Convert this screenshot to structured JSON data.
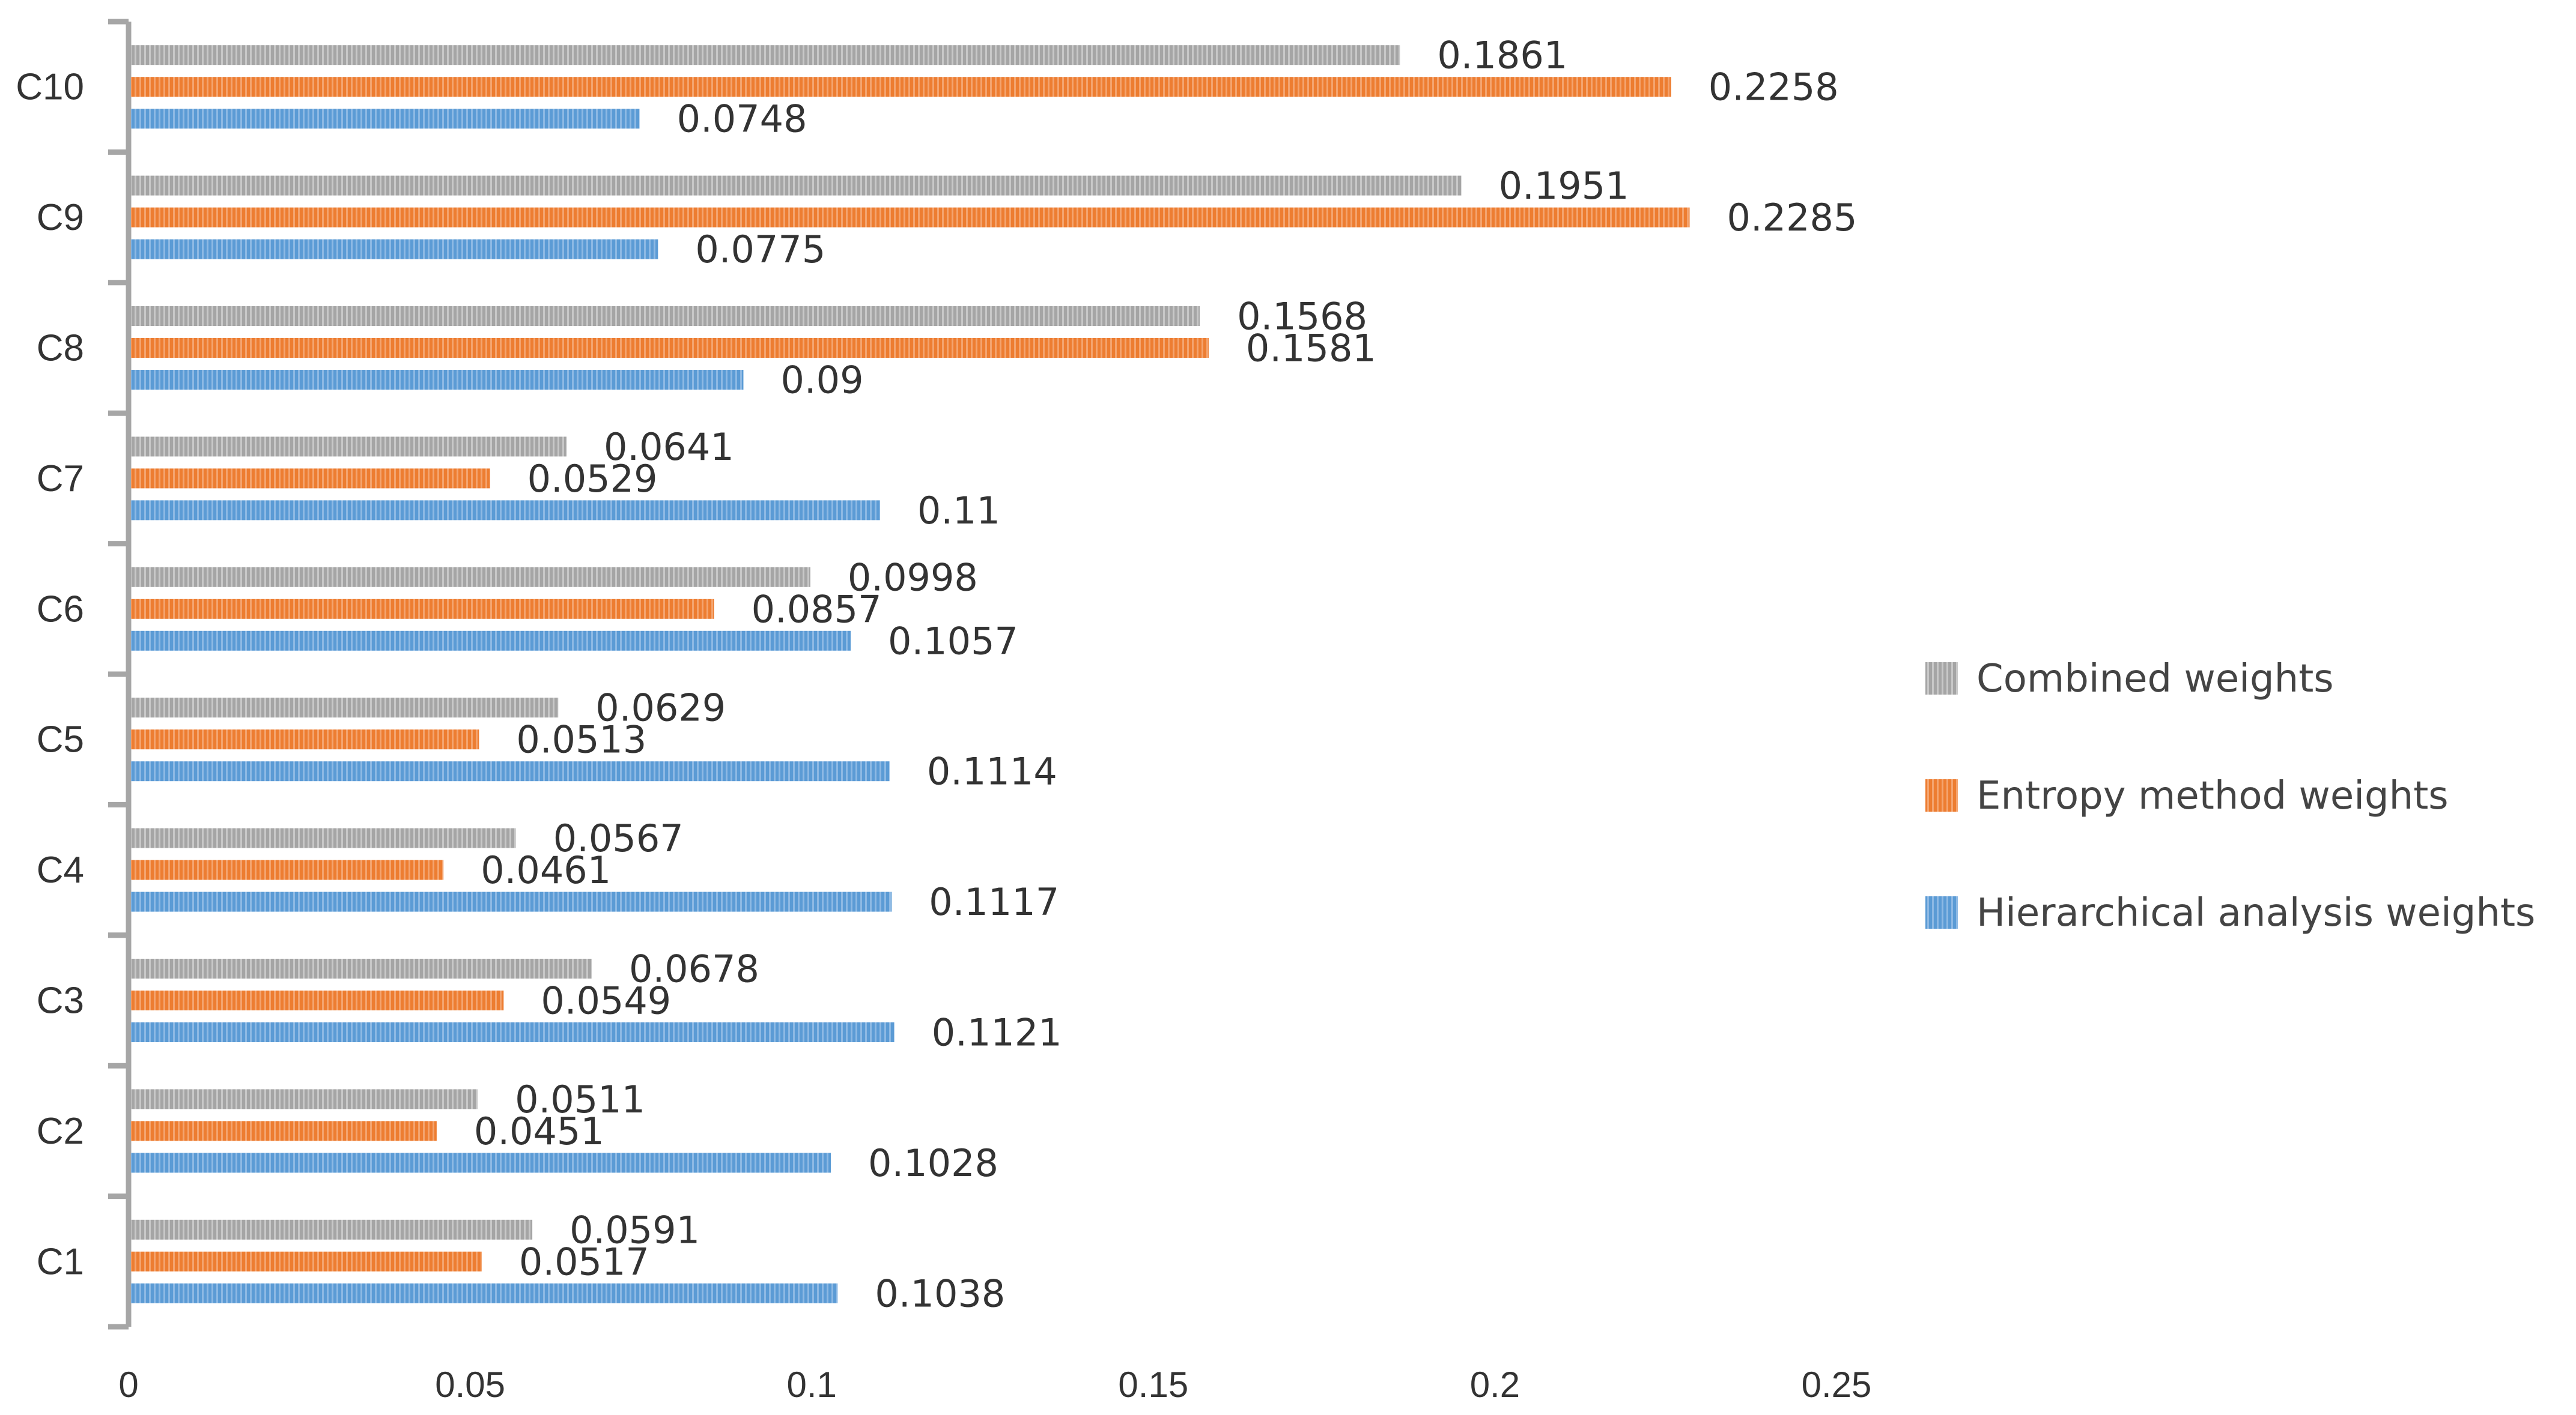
{
  "chart_data": {
    "type": "bar",
    "orientation": "horizontal",
    "title": "",
    "xlabel": "",
    "ylabel": "",
    "xlim": [
      0,
      0.25
    ],
    "x_ticks": [
      "0",
      "0.05",
      "0.1",
      "0.15",
      "0.2",
      "0.25"
    ],
    "x_tick_values": [
      0,
      0.05,
      0.1,
      0.15,
      0.2,
      0.25
    ],
    "grid": false,
    "legend_position": "right",
    "categories": [
      "C1",
      "C2",
      "C3",
      "C4",
      "C5",
      "C6",
      "C7",
      "C8",
      "C9",
      "C10"
    ],
    "series": [
      {
        "name": "Combined weights",
        "color": "#a5a5a5",
        "stripe": "#c8c8c8",
        "values": [
          0.0591,
          0.0511,
          0.0678,
          0.0567,
          0.0629,
          0.0998,
          0.0641,
          0.1568,
          0.1951,
          0.1861
        ],
        "labels": [
          "0.0591",
          "0.0511",
          "0.0678",
          "0.0567",
          "0.0629",
          "0.0998",
          "0.0641",
          "0.1568",
          "0.1951",
          "0.1861"
        ]
      },
      {
        "name": "Entropy method weights",
        "color": "#ed7d31",
        "stripe": "#f4a46f",
        "values": [
          0.0517,
          0.0451,
          0.0549,
          0.0461,
          0.0513,
          0.0857,
          0.0529,
          0.1581,
          0.2285,
          0.2258
        ],
        "labels": [
          "0.0517",
          "0.0451",
          "0.0549",
          "0.0461",
          "0.0513",
          "0.0857",
          "0.0529",
          "0.1581",
          "0.2285",
          "0.2258"
        ]
      },
      {
        "name": "Hierarchical analysis weights",
        "color": "#5b9bd5",
        "stripe": "#8db9e4",
        "values": [
          0.1038,
          0.1028,
          0.1121,
          0.1117,
          0.1114,
          0.1057,
          0.11,
          0.09,
          0.0775,
          0.0748
        ],
        "labels": [
          "0.1038",
          "0.1028",
          "0.1121",
          "0.1117",
          "0.1114",
          "0.1057",
          "0.11",
          "0.09",
          "0.0775",
          "0.0748"
        ]
      }
    ]
  }
}
